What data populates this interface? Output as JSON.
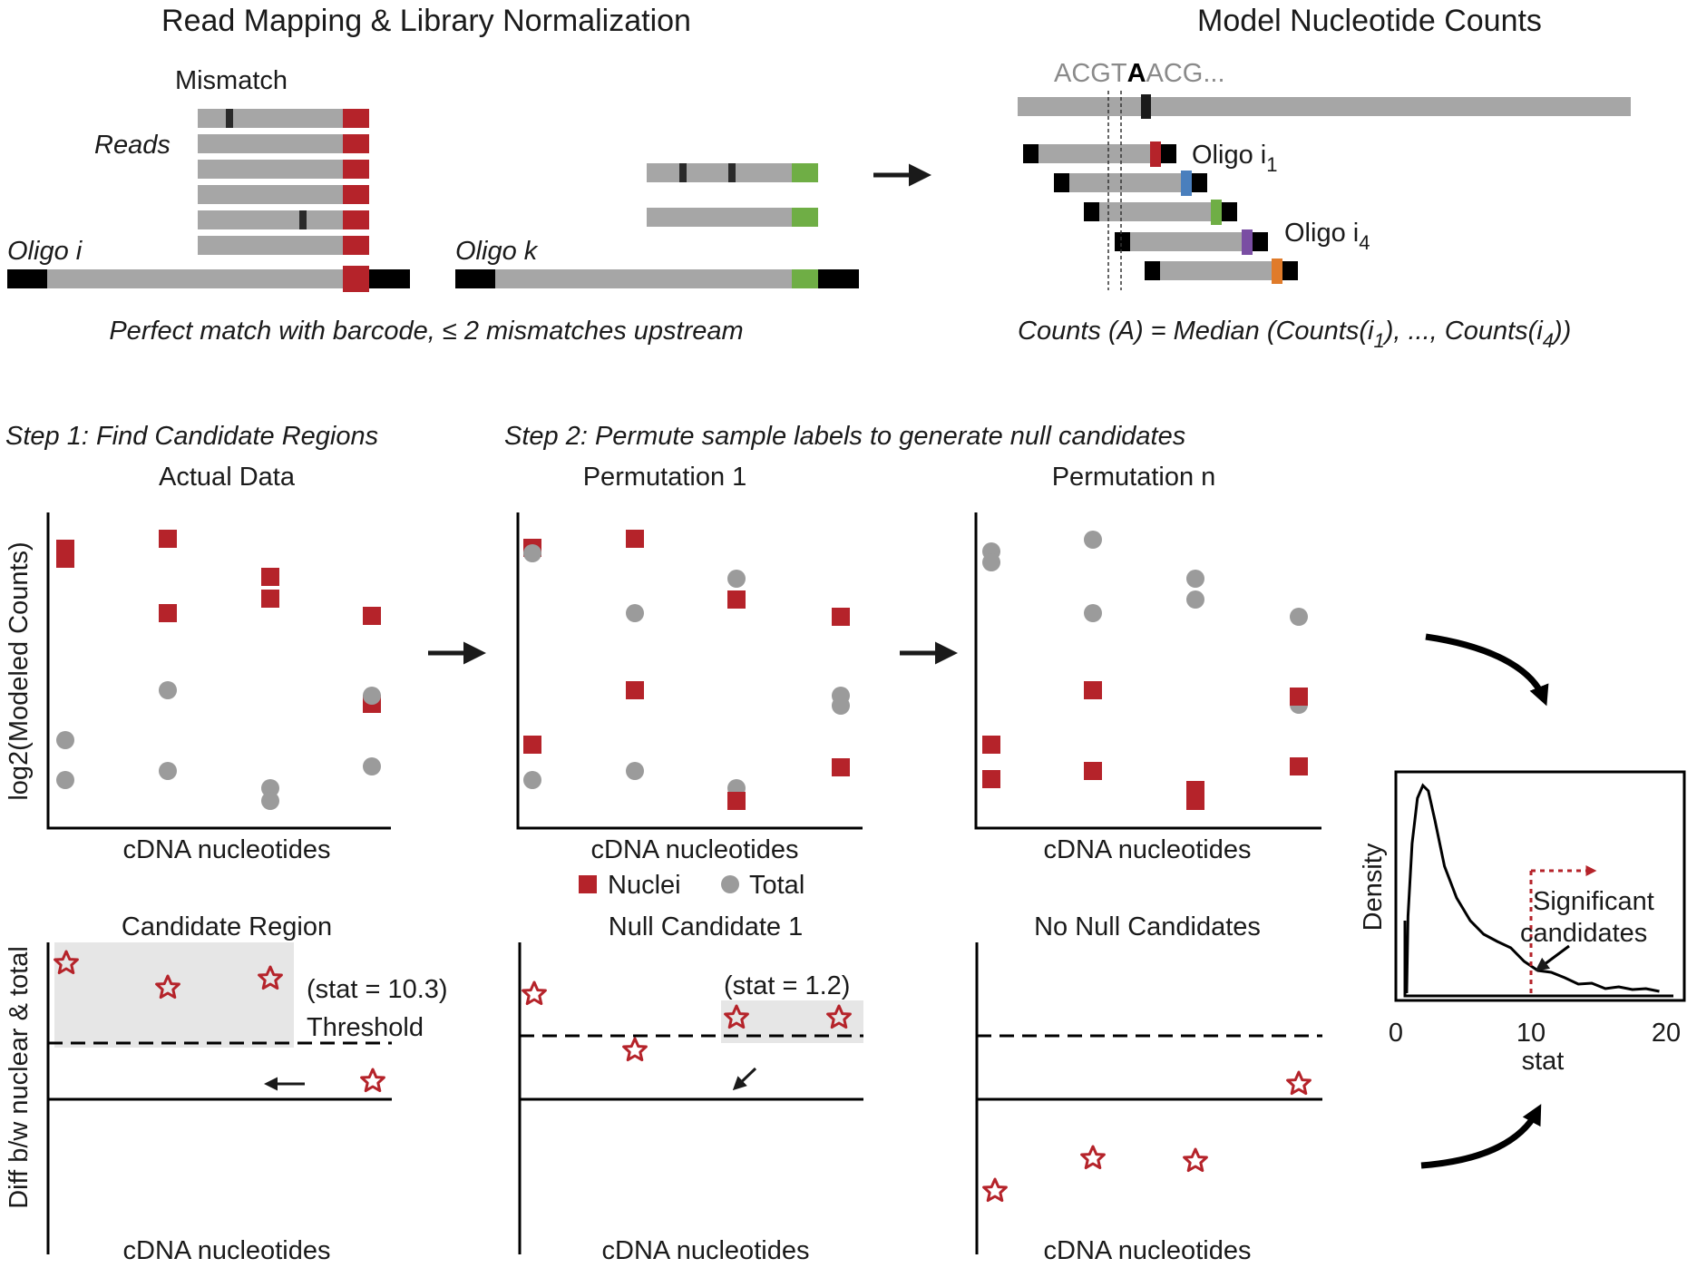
{
  "top_left": {
    "title": "Read Mapping & Library Normalization",
    "mismatch_label": "Mismatch",
    "reads_label": "Reads",
    "oligo_i_label": "Oligo i",
    "oligo_k_label": "Oligo k",
    "caption": "Perfect match with barcode, ≤ 2 mismatches upstream"
  },
  "top_right": {
    "title": "Model Nucleotide Counts",
    "sequence_prefix": "ACGT",
    "sequence_focus": "A",
    "sequence_suffix": "ACG...",
    "oligo_i1_label": "Oligo i",
    "oligo_i1_sub": "1",
    "oligo_i4_label": "Oligo i",
    "oligo_i4_sub": "4",
    "formula_a": "Counts (A) = Median (Counts(i",
    "formula_sub1": "1",
    "formula_b": "), ..., Counts(i",
    "formula_sub4": "4",
    "formula_c": "))"
  },
  "colors": {
    "nuclei": "#b5232a",
    "total": "#9b9b9b",
    "bar": "#a6a6a6",
    "green": "#6fae45",
    "blue": "#4a7fbd",
    "purple": "#7a4ea3",
    "orange": "#e07b2a",
    "highlight": "#e6e6e6"
  },
  "steps": {
    "step1_label": "Step 1: Find Candidate Regions",
    "step2_label": "Step 2: Permute sample labels to generate null candidates"
  },
  "scatter_panels": {
    "y_axis_label": "log2(Modeled Counts)",
    "panel1_title": "Actual Data",
    "panel2_title": "Permutation 1",
    "panel3_title": "Permutation n",
    "x_axis_label": "cDNA nucleotides"
  },
  "legend": {
    "nuclei": "Nuclei",
    "total": "Total"
  },
  "diff_panels": {
    "y_axis_label": "Diff b/w nuclear & total",
    "panel1_title": "Candidate Region",
    "panel2_title": "Null Candidate 1",
    "panel3_title": "No Null Candidates",
    "stat_candidate": "(stat = 10.3)",
    "threshold_label": "Threshold",
    "stat_null": "(stat = 1.2)",
    "x_axis_label": "cDNA nucleotides"
  },
  "density_plot": {
    "y_axis_label": "Density",
    "x_axis_label": "stat",
    "x_ticks": [
      "0",
      "10",
      "20"
    ],
    "threshold": 10,
    "annotation_line1": "Significant",
    "annotation_line2": "candidates"
  }
}
